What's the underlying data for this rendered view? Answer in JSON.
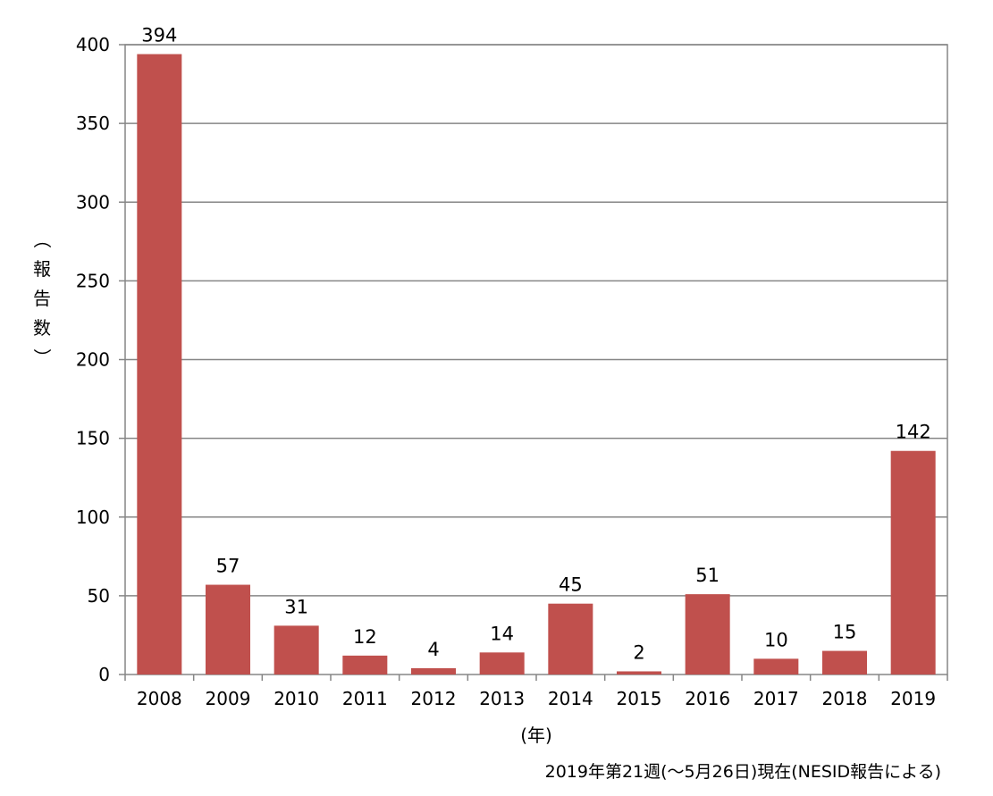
{
  "chart_data": {
    "type": "bar",
    "categories": [
      "2008",
      "2009",
      "2010",
      "2011",
      "2012",
      "2013",
      "2014",
      "2015",
      "2016",
      "2017",
      "2018",
      "2019"
    ],
    "values": [
      394,
      57,
      31,
      12,
      4,
      14,
      45,
      2,
      51,
      10,
      15,
      142
    ],
    "ylim": [
      0,
      400
    ],
    "yticks": [
      0,
      50,
      100,
      150,
      200,
      250,
      300,
      350,
      400
    ],
    "ylabel_chars": [
      "（",
      "報",
      "告",
      "数",
      "）"
    ],
    "xlabel": "(年)",
    "note": "2019年第21週(～5月26日)現在(NESID報告による)",
    "grid": true,
    "bar_color": "#c0504d"
  }
}
